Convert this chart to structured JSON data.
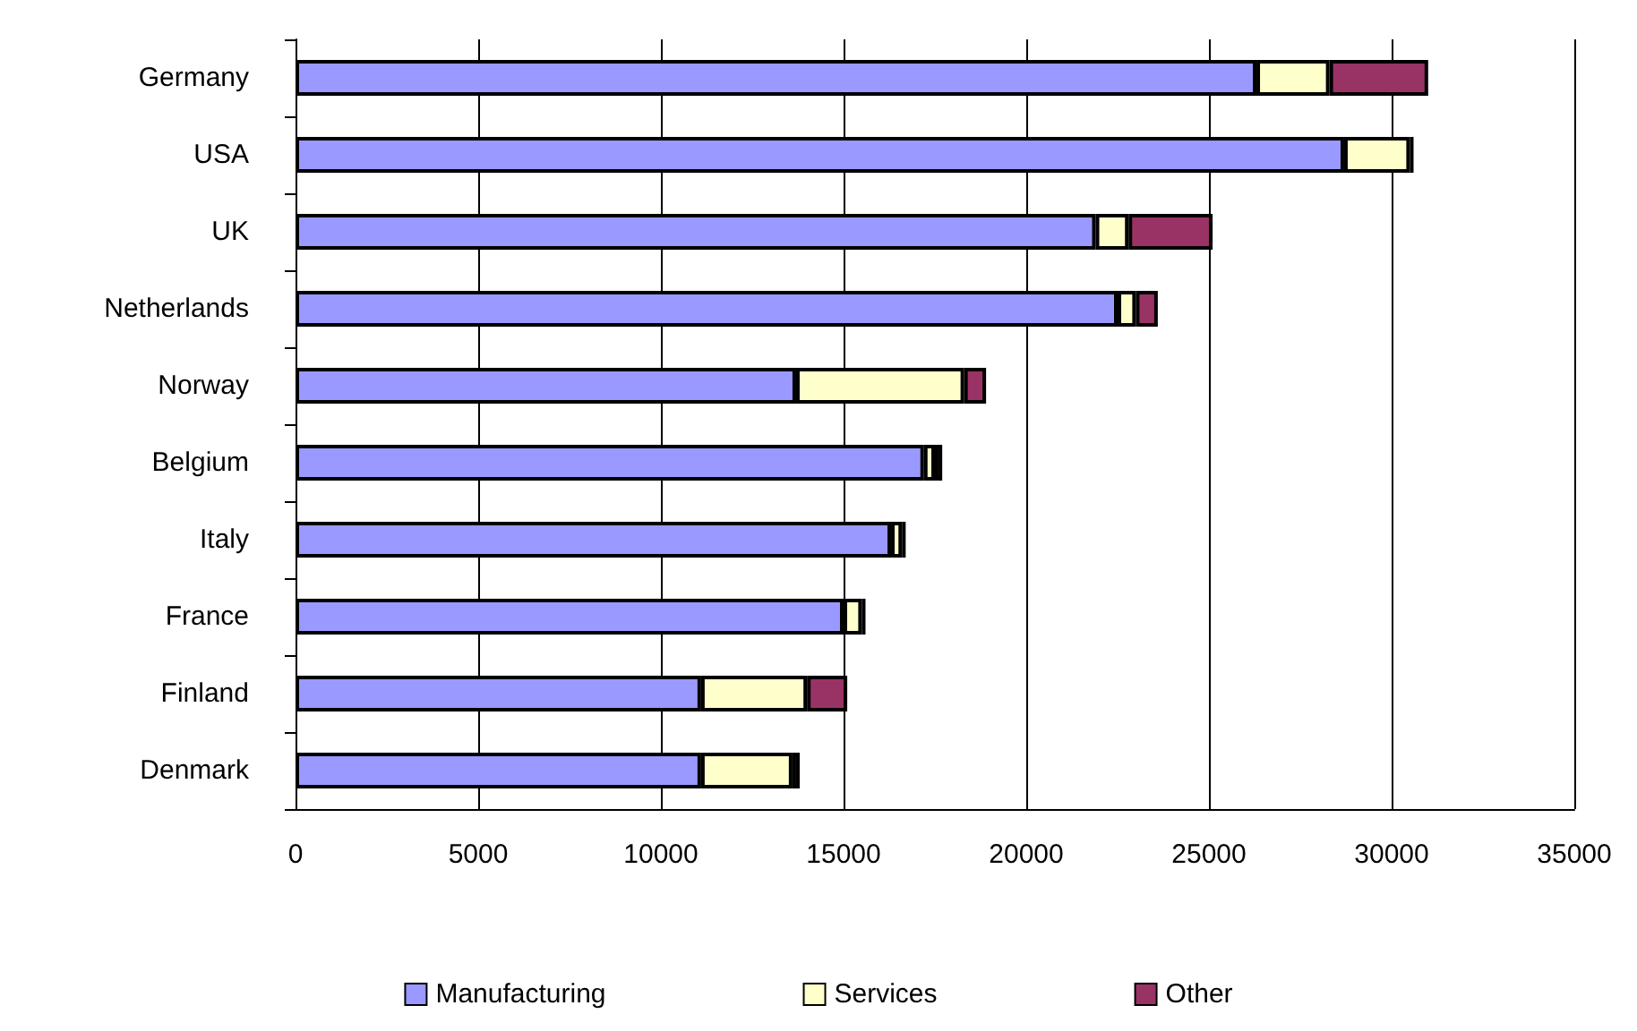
{
  "chart_data": {
    "type": "bar",
    "orientation": "horizontal",
    "stacked": true,
    "categories": [
      "Germany",
      "USA",
      "UK",
      "Netherlands",
      "Norway",
      "Belgium",
      "Italy",
      "France",
      "Finland",
      "Denmark"
    ],
    "series": [
      {
        "name": "Manufacturing",
        "color": "#9999ff",
        "values": [
          26300,
          28700,
          21900,
          22500,
          13700,
          17200,
          16300,
          15000,
          11100,
          11100
        ]
      },
      {
        "name": "Services",
        "color": "#ffffcc",
        "values": [
          2000,
          1800,
          900,
          500,
          4600,
          300,
          300,
          500,
          2900,
          2500
        ]
      },
      {
        "name": "Other",
        "color": "#993366",
        "values": [
          2700,
          100,
          2300,
          600,
          600,
          200,
          100,
          100,
          1100,
          200
        ]
      }
    ],
    "xlim": [
      0,
      35000
    ],
    "xticks": [
      0,
      5000,
      10000,
      15000,
      20000,
      25000,
      30000,
      35000
    ],
    "grid": "x",
    "legend": "bottom"
  }
}
